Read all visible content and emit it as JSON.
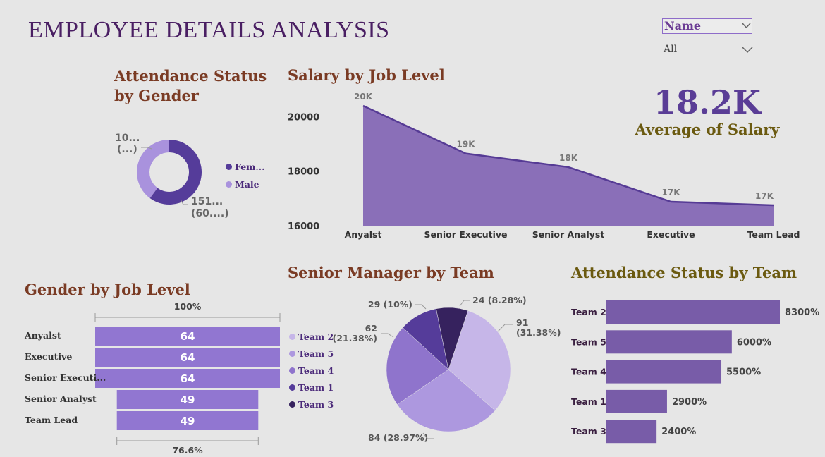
{
  "header": {
    "title": "EMPLOYEE DETAILS ANALYSIS"
  },
  "slicer": {
    "field": "Name",
    "value": "All"
  },
  "kpi": {
    "value": "18.2K",
    "label": "Average of Salary"
  },
  "chart_data": [
    {
      "type": "pie",
      "title": "Attendance Status by Gender",
      "donut": true,
      "labels": [
        "Fem...",
        "Male"
      ],
      "values": [
        151,
        100
      ],
      "data_labels": [
        [
          "151...",
          "(60....)"
        ],
        [
          "10...",
          "(...)"
        ]
      ],
      "colors": [
        "#553c9a",
        "#a992dd"
      ],
      "legend": "right"
    },
    {
      "type": "area",
      "title": "Salary by Job Level",
      "categories": [
        "Anyalst",
        "Senior Executive",
        "Senior Analyst",
        "Executive",
        "Team Lead"
      ],
      "values": [
        20400,
        18650,
        18150,
        16880,
        16750
      ],
      "data_labels": [
        "20K",
        "19K",
        "18K",
        "17K",
        "17K"
      ],
      "ylim": [
        16000,
        20400
      ],
      "yticks": [
        "20000",
        "18000",
        "16000"
      ],
      "color": "#8a6fb8"
    },
    {
      "type": "bar",
      "title": "Gender by Job Level",
      "categories": [
        "Anyalst",
        "Executive",
        "Senior Executi...",
        "Senior Analyst",
        "Team Lead"
      ],
      "values": [
        64,
        64,
        64,
        49,
        49
      ],
      "top_label": "100%",
      "bottom_label": "76.6%",
      "color": "#9176d1"
    },
    {
      "type": "pie",
      "title": "Senior Manager by Team",
      "labels": [
        "Team 2",
        "Team 5",
        "Team 4",
        "Team 1",
        "Team 3"
      ],
      "values": [
        91,
        84,
        62,
        29,
        24
      ],
      "data_labels": [
        "91 (31.38%)",
        "84 (28.97%)",
        "62 (21.38%)",
        "29 (10%)",
        "24 (8.28%)"
      ],
      "colors": [
        "#c6b6e8",
        "#ad98df",
        "#8f74cc",
        "#553c9a",
        "#36225e"
      ],
      "legend": "left"
    },
    {
      "type": "bar",
      "title": "Attendance Status by Team",
      "categories": [
        "Team 2",
        "Team 5",
        "Team 4",
        "Team 1",
        "Team 3"
      ],
      "values": [
        8300,
        6000,
        5500,
        2900,
        2400
      ],
      "data_labels": [
        "8300%",
        "6000%",
        "5500%",
        "2900%",
        "2400%"
      ],
      "color": "#785ca8"
    }
  ]
}
